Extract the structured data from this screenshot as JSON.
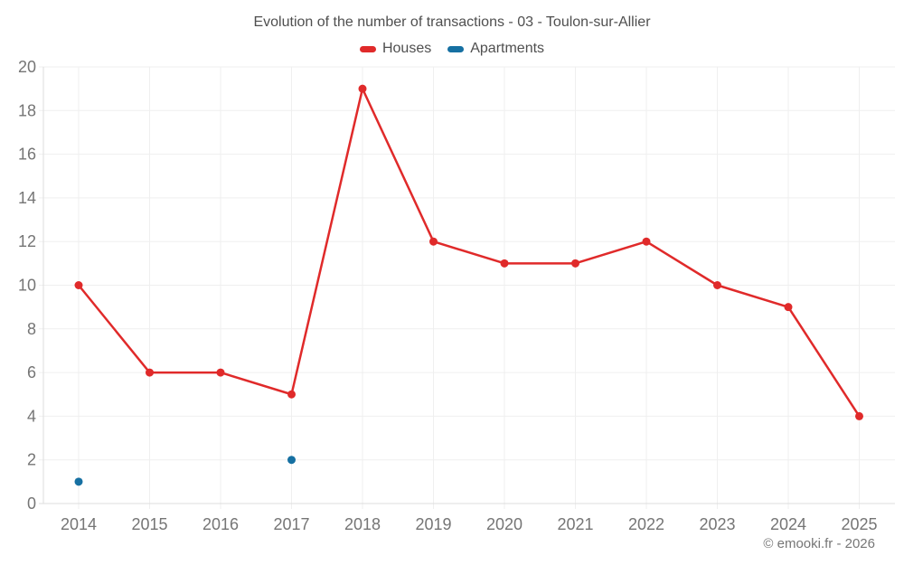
{
  "title": "Evolution of the number of transactions - 03 - Toulon-sur-Allier",
  "footer": "© emooki.fr - 2026",
  "chart_data": {
    "type": "line",
    "title": "Evolution of the number of transactions - 03 - Toulon-sur-Allier",
    "x": [
      "2014",
      "2015",
      "2016",
      "2017",
      "2018",
      "2019",
      "2020",
      "2021",
      "2022",
      "2023",
      "2024",
      "2025"
    ],
    "series": [
      {
        "name": "Houses",
        "color": "#e02a2a",
        "values": [
          10,
          6,
          6,
          5,
          19,
          12,
          11,
          11,
          12,
          10,
          9,
          4
        ]
      },
      {
        "name": "Apartments",
        "color": "#1670a2",
        "values": [
          1,
          null,
          null,
          2,
          null,
          null,
          null,
          null,
          null,
          null,
          null,
          null
        ]
      }
    ],
    "ylim": [
      0,
      20
    ],
    "ytick_step": 2,
    "grid": true,
    "legend_position": "top",
    "span_gaps": false,
    "tick_color": "#757575",
    "grid_color": "#efefef",
    "axis_color": "#dedede"
  }
}
